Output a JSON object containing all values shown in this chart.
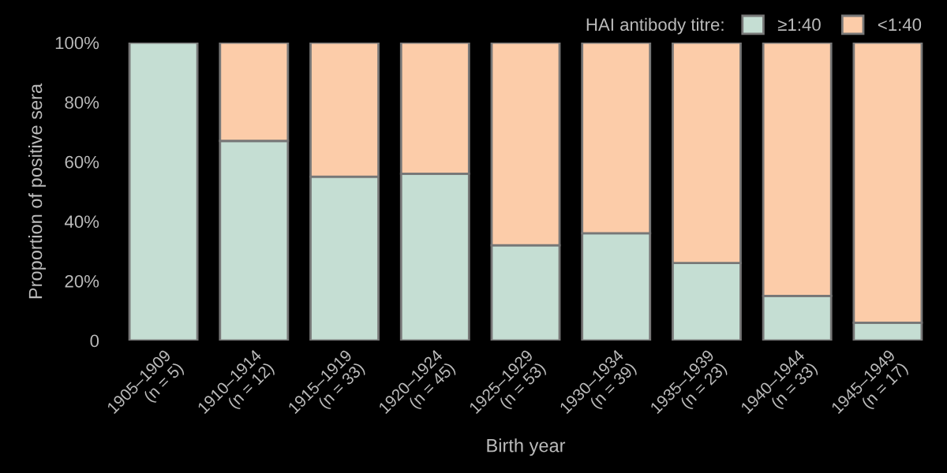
{
  "chart_data": {
    "type": "bar",
    "stacked": true,
    "xlabel": "Birth year",
    "ylabel": "Proportion of positive sera",
    "legend_title": "HAI antibody titre:",
    "legend": "top right",
    "categories": [
      "1905–1909\n(n = 5)",
      "1910–1914\n(n = 12)",
      "1915–1919\n(n = 33)",
      "1920–1924\n(n = 45)",
      "1925–1929\n(n = 53)",
      "1930–1934\n(n = 39)",
      "1935–1939\n(n = 23)",
      "1940–1944\n(n = 33)",
      "1945–1949\n(n = 17)"
    ],
    "series": [
      {
        "name": "≥1:40",
        "color": "#c5ded3",
        "values": [
          100,
          67,
          55,
          56,
          32,
          36,
          26,
          15,
          6
        ]
      },
      {
        "name": "<1:40",
        "color": "#fccca9",
        "values": [
          null,
          33,
          45,
          44,
          68,
          64,
          74,
          85,
          94
        ]
      }
    ],
    "ylim": [
      0,
      100
    ],
    "yticks": [
      {
        "value": 0,
        "label": "0"
      },
      {
        "value": 20,
        "label": "20%"
      },
      {
        "value": 40,
        "label": "40%"
      },
      {
        "value": 60,
        "label": "60%"
      },
      {
        "value": 80,
        "label": "80%"
      },
      {
        "value": 100,
        "label": "100%"
      }
    ],
    "grid": false
  }
}
